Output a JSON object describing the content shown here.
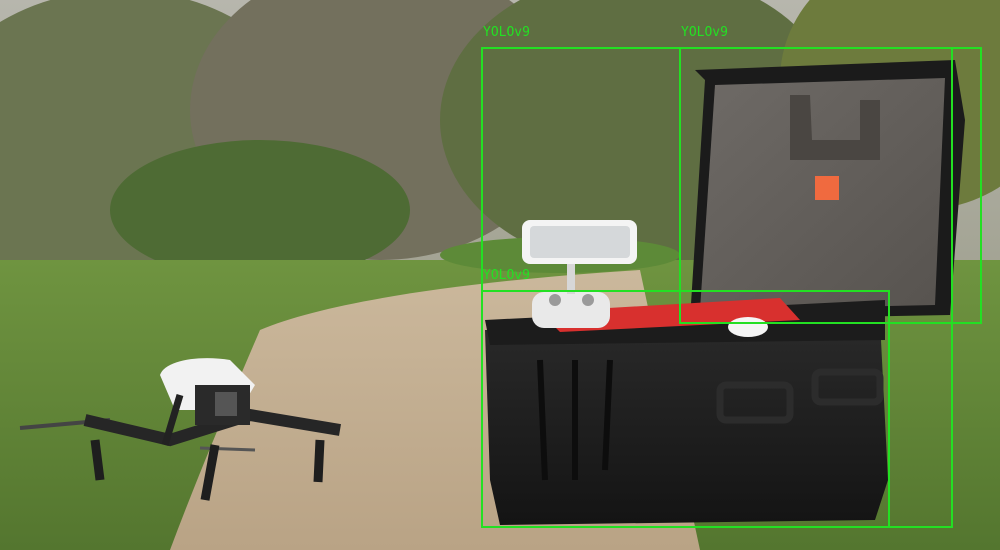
{
  "image": {
    "description_free": true
  },
  "detections": [
    {
      "label": "YOLOv9",
      "object_icon": "phone-icon"
    },
    {
      "label": "YOLOv9",
      "object_icon": "case-lid-icon"
    },
    {
      "label": "YOLOv9",
      "object_icon": "case-base-icon"
    },
    {
      "label": "YOLOv9",
      "object_icon": "case-full-icon"
    }
  ],
  "colors": {
    "box": "#23e023",
    "label": "#23e023"
  }
}
